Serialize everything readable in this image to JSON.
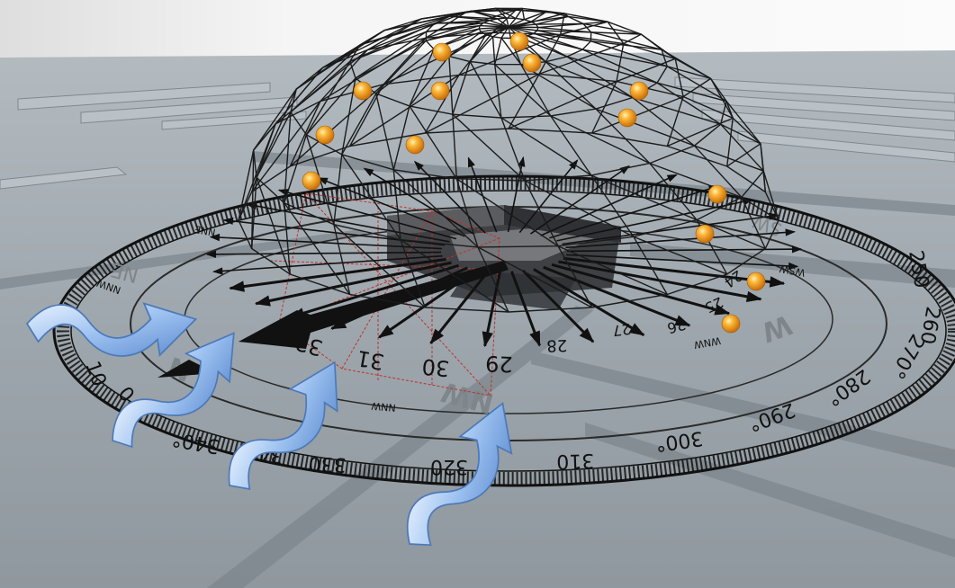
{
  "compass": {
    "degree_labels": [
      "10",
      "0",
      "340°",
      "340°",
      "330",
      "320",
      "310",
      "300°",
      "290°",
      "280°",
      "270°",
      "260",
      "250"
    ],
    "direction_labels": [
      "NE",
      "N",
      "NNW",
      "NW",
      "WNW",
      "W",
      "WSW",
      "SW",
      "NNE",
      "NNW"
    ]
  },
  "wind_rose": {
    "day_labels": [
      "32",
      "31",
      "30",
      "29",
      "28",
      "27",
      "26",
      "25",
      "24"
    ]
  },
  "colors": {
    "ground": "#9aa3a9",
    "sky": "#f3f3f3",
    "sun_orb": "#f5a21f",
    "wind_arrow": "#8fb8ee",
    "dome_wire": "#1b1b1b",
    "red_wire": "#c0312a",
    "building": "#4a4c50"
  },
  "icons": [
    "wind-flow-icon",
    "sun-orb-icon",
    "compass-ring-icon"
  ]
}
